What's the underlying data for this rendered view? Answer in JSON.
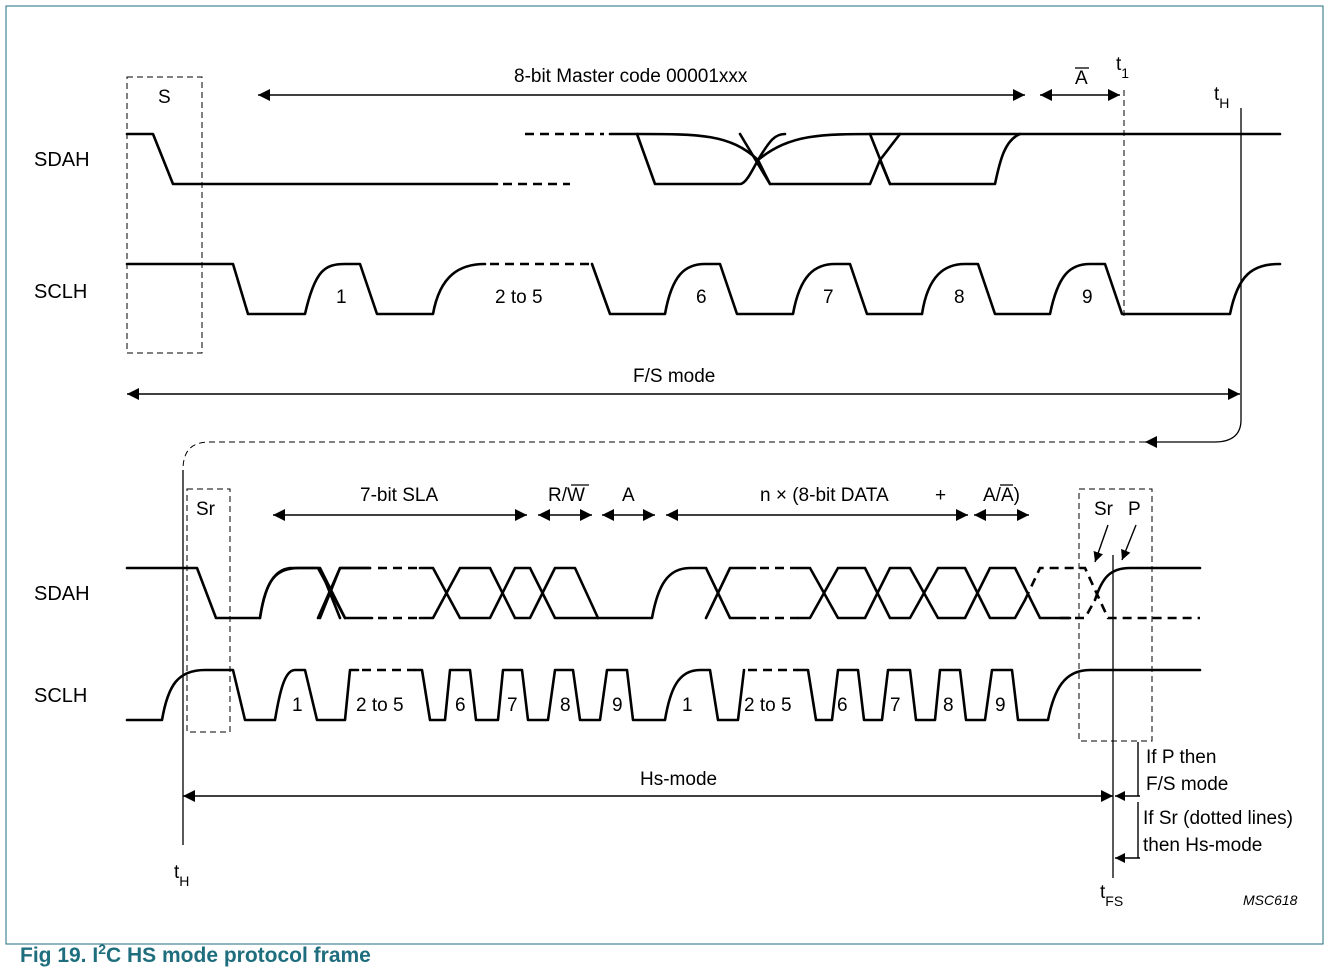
{
  "caption": {
    "prefix": "Fig 19.  I",
    "sup": "2",
    "rest": "C HS mode protocol frame"
  },
  "code": "MSC618",
  "signals": {
    "sda": "SDAH",
    "scl": "SCLH"
  },
  "top": {
    "start": "S",
    "master_code": "8-bit Master code 00001xxx",
    "nack": "A",
    "t1": "t",
    "t1_sub": "1",
    "tH": "t",
    "tH_sub": "H",
    "clocks": [
      "1",
      "2 to 5",
      "6",
      "7",
      "8",
      "9"
    ],
    "mode": "F/S mode"
  },
  "bottom": {
    "restart": "Sr",
    "sla": "7-bit SLA",
    "rw_r": "R/",
    "rw_w": "W",
    "ack": "A",
    "data": "n × (8-bit DATA",
    "plus": "+",
    "ack_nack_a": "A/",
    "ack_nack_b": "A",
    "ack_nack_c": ")",
    "sr2": "Sr",
    "p": "P",
    "clocks1": [
      "1",
      "2 to 5",
      "6",
      "7",
      "8",
      "9"
    ],
    "clocks2": [
      "1",
      "2 to 5",
      "6",
      "7",
      "8",
      "9"
    ],
    "mode": "Hs-mode",
    "tH": "t",
    "tH_sub": "H",
    "tFS": "t",
    "tFS_sub": "FS",
    "note_p_1": "If P then",
    "note_p_2": "F/S mode",
    "note_sr_1": "If Sr (dotted lines)",
    "note_sr_2": "then Hs-mode"
  }
}
